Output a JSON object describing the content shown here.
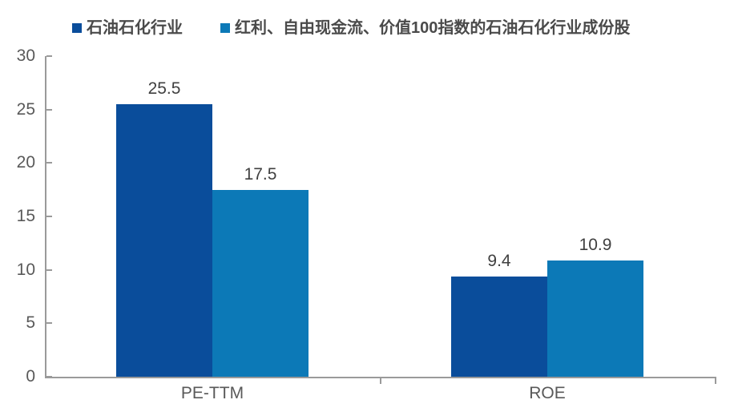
{
  "chart_data": {
    "type": "bar",
    "categories": [
      "PE-TTM",
      "ROE"
    ],
    "series": [
      {
        "name": "石油石化行业",
        "color": "#0A4D9B",
        "values": [
          25.5,
          9.4
        ]
      },
      {
        "name": "红利、自由现金流、价值100指数的石油石化行业成份股",
        "color": "#0C79B7",
        "values": [
          17.5,
          10.9
        ]
      }
    ],
    "ylim": [
      0,
      30
    ],
    "yticks": [
      0,
      5,
      10,
      15,
      20,
      25,
      30
    ],
    "grid": false,
    "legend_position": "top-left",
    "value_labels_shown": true
  },
  "colors": {
    "series_1": "#0A4D9B",
    "series_2": "#0C79B7",
    "axis_line": "#9A9A9A",
    "axis_tick_label": "#595959",
    "value_label": "#404040",
    "legend_text": "#4A4A4A",
    "background": "#FFFFFF"
  }
}
